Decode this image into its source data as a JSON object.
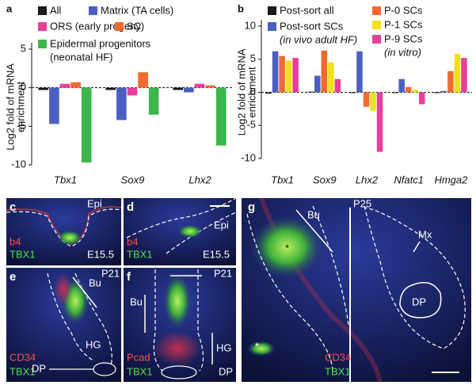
{
  "chart_data": [
    {
      "type": "bar",
      "panel": "a",
      "ylabel": [
        "Log2 fold of mRNA",
        "enrichment"
      ],
      "categories": [
        "Tbx1",
        "Sox9",
        "Lhx2"
      ],
      "series": [
        {
          "name": "All",
          "color": "#1a1a1a",
          "values": [
            -0.3,
            -0.3,
            -0.3
          ]
        },
        {
          "name": "Matrix (TA cells)",
          "color": "#4a5fc1",
          "values": [
            -4.7,
            -4.2,
            -0.6
          ]
        },
        {
          "name": "ORS (early progeny)",
          "color": "#e6409b",
          "values": [
            0.5,
            -1.0,
            0.5
          ]
        },
        {
          "name": "SC",
          "color": "#f26a2e",
          "values": [
            0.7,
            2.0,
            0.3
          ]
        },
        {
          "name": "Epidermal progenitors",
          "note": "(neonatal HF)",
          "color": "#3cb54a",
          "values": [
            -9.7,
            -3.5,
            -7.5
          ]
        }
      ],
      "ylim": [
        -10,
        5
      ],
      "yticks": [
        5,
        0,
        -5,
        -10
      ]
    },
    {
      "type": "bar",
      "panel": "b",
      "ylabel": [
        "Log2 fold of mRNA",
        "enrichment"
      ],
      "categories": [
        "Tbx1",
        "Sox9",
        "Lhx2",
        "Nfatc1",
        "Hmga2"
      ],
      "series": [
        {
          "name": "Post-sort all",
          "color": "#1a1a1a",
          "values": [
            -0.2,
            0.1,
            0,
            0,
            0
          ]
        },
        {
          "name": "Post-sort SCs",
          "note": "(in vivo adult HF)",
          "color": "#4a5fc1",
          "values": [
            6.2,
            2.5,
            6.2,
            2.0,
            0.2
          ]
        },
        {
          "name": "P-0 SCs",
          "color": "#f26a2e",
          "values": [
            5.5,
            6.3,
            -2.2,
            0.8,
            3.2
          ]
        },
        {
          "name": "P-1 SCs",
          "color": "#f2e01c",
          "values": [
            4.8,
            4.5,
            -2.8,
            0.4,
            5.8
          ]
        },
        {
          "name": "P-9 SCs",
          "note": "(in vitro)",
          "color": "#e6409b",
          "values": [
            5.2,
            2.0,
            -9.0,
            -1.8,
            5.2
          ]
        }
      ],
      "ylim": [
        -10,
        10
      ],
      "yticks": [
        10,
        5,
        0,
        -5,
        -10
      ]
    }
  ],
  "panels": [
    {
      "letter": "c",
      "labels": [
        "Epi",
        "b4",
        "TBX1",
        "E15.5"
      ]
    },
    {
      "letter": "d",
      "labels": [
        "Epi",
        "b4",
        "TBX1",
        "E15.5"
      ]
    },
    {
      "letter": "e",
      "labels": [
        "P21",
        "Bu",
        "HG",
        "CD34",
        "TBX1",
        "DP"
      ]
    },
    {
      "letter": "f",
      "labels": [
        "P21",
        "Bu",
        "HG",
        "Pcad",
        "TBX1",
        "DP"
      ]
    },
    {
      "letter": "g",
      "labels": [
        "P25",
        "Bu",
        "Mx",
        "DP",
        "CD34",
        "TBX1",
        "*",
        "*"
      ]
    }
  ]
}
